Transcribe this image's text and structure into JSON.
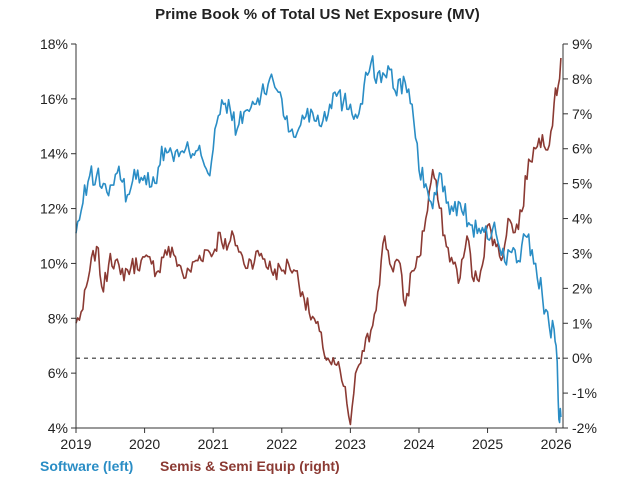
{
  "chart_data": {
    "type": "line",
    "title": "Prime Book % of Total US Net Exposure (MV)",
    "x_ticks": [
      "2019",
      "2020",
      "2021",
      "2022",
      "2023",
      "2024",
      "2025",
      "2026"
    ],
    "x_range": [
      2019.0,
      2026.1
    ],
    "y_left": {
      "range": [
        4,
        18
      ],
      "ticks": [
        "4%",
        "6%",
        "8%",
        "10%",
        "12%",
        "14%",
        "16%",
        "18%"
      ]
    },
    "y_right": {
      "range": [
        -2,
        9
      ],
      "ticks": [
        "-2%",
        "-1%",
        "0%",
        "1%",
        "2%",
        "3%",
        "4%",
        "5%",
        "6%",
        "7%",
        "8%",
        "9%"
      ]
    },
    "reference_line": {
      "axis": "right",
      "value": 0,
      "style": "dashed"
    },
    "grid": false,
    "legend_position": "bottom-left",
    "series": [
      {
        "name": "Software (left)",
        "axis": "left",
        "color": "#2a8dc5",
        "x": [
          2019.0,
          2019.1,
          2019.2,
          2019.3,
          2019.45,
          2019.6,
          2019.75,
          2019.9,
          2020.0,
          2020.1,
          2020.2,
          2020.3,
          2020.4,
          2020.5,
          2020.65,
          2020.8,
          2020.95,
          2021.05,
          2021.15,
          2021.25,
          2021.35,
          2021.5,
          2021.6,
          2021.75,
          2021.85,
          2022.0,
          2022.1,
          2022.2,
          2022.3,
          2022.45,
          2022.6,
          2022.75,
          2022.9,
          2023.0,
          2023.1,
          2023.2,
          2023.3,
          2023.45,
          2023.55,
          2023.65,
          2023.8,
          2023.9,
          2024.0,
          2024.1,
          2024.2,
          2024.3,
          2024.4,
          2024.5,
          2024.6,
          2024.75,
          2024.9,
          2025.0,
          2025.1,
          2025.2,
          2025.35,
          2025.45,
          2025.55,
          2025.7,
          2025.8,
          2025.9,
          2025.97,
          2026.0,
          2026.03,
          2026.05,
          2026.07
        ],
        "values": [
          11.1,
          12.2,
          13.2,
          13.2,
          12.6,
          13.3,
          12.5,
          13.4,
          13.2,
          12.8,
          13.5,
          14.2,
          14.0,
          13.9,
          14.1,
          14.3,
          13.2,
          15.1,
          15.8,
          15.6,
          14.9,
          15.6,
          15.8,
          16.2,
          16.9,
          16.0,
          14.8,
          14.6,
          15.4,
          15.5,
          15.2,
          16.2,
          15.9,
          15.8,
          15.3,
          16.5,
          17.3,
          16.6,
          17.2,
          16.3,
          16.6,
          15.8,
          13.4,
          12.9,
          12.0,
          13.3,
          12.2,
          11.9,
          12.2,
          11.4,
          11.1,
          10.9,
          11.5,
          10.3,
          10.4,
          10.1,
          11.0,
          10.0,
          8.8,
          7.7,
          7.6,
          7.0,
          5.0,
          4.2,
          4.4
        ]
      },
      {
        "name": "Semis & Semi Equip (right)",
        "axis": "right",
        "color": "#8b3a33",
        "x": [
          2019.0,
          2019.1,
          2019.2,
          2019.3,
          2019.4,
          2019.5,
          2019.65,
          2019.8,
          2019.95,
          2020.1,
          2020.2,
          2020.3,
          2020.45,
          2020.6,
          2020.75,
          2020.9,
          2021.0,
          2021.1,
          2021.2,
          2021.3,
          2021.45,
          2021.55,
          2021.7,
          2021.85,
          2022.0,
          2022.1,
          2022.2,
          2022.3,
          2022.4,
          2022.5,
          2022.6,
          2022.7,
          2022.8,
          2022.9,
          2022.95,
          2023.0,
          2023.05,
          2023.1,
          2023.2,
          2023.3,
          2023.4,
          2023.5,
          2023.6,
          2023.7,
          2023.8,
          2023.9,
          2024.0,
          2024.1,
          2024.2,
          2024.3,
          2024.4,
          2024.5,
          2024.6,
          2024.7,
          2024.8,
          2024.9,
          2025.0,
          2025.1,
          2025.2,
          2025.3,
          2025.4,
          2025.5,
          2025.6,
          2025.7,
          2025.8,
          2025.9,
          2025.97,
          2026.03,
          2026.07
        ],
        "values": [
          1.0,
          1.4,
          2.5,
          3.2,
          1.9,
          3.0,
          2.4,
          2.6,
          2.8,
          2.7,
          2.5,
          3.1,
          2.9,
          2.3,
          2.8,
          3.1,
          3.0,
          3.6,
          3.1,
          3.5,
          2.7,
          2.8,
          3.0,
          2.5,
          2.5,
          2.7,
          2.5,
          1.9,
          1.3,
          1.0,
          0.3,
          -0.1,
          -0.2,
          -0.8,
          -1.3,
          -1.9,
          -1.0,
          -0.3,
          0.2,
          0.8,
          1.9,
          3.5,
          2.6,
          2.8,
          1.5,
          2.5,
          2.9,
          4.0,
          5.4,
          4.3,
          3.2,
          2.7,
          2.3,
          3.5,
          2.2,
          2.5,
          3.8,
          3.4,
          2.8,
          4.0,
          3.6,
          4.2,
          5.7,
          6.0,
          6.4,
          6.1,
          7.3,
          7.8,
          8.6
        ]
      }
    ]
  }
}
